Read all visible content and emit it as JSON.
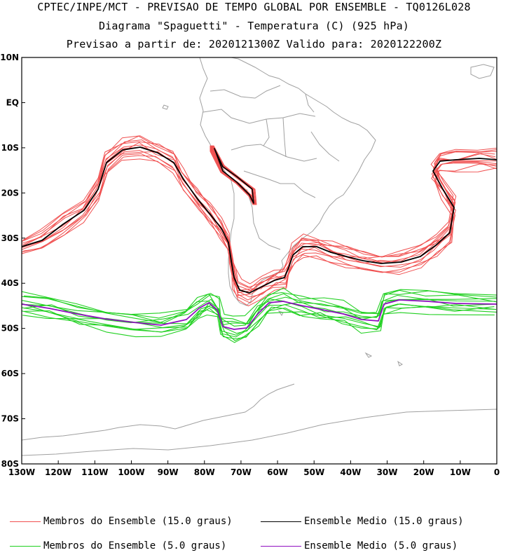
{
  "header": {
    "line1": "CPTEC/INPE/MCT - PREVISAO DE TEMPO GLOBAL POR ENSEMBLE - TQ0126L028",
    "line2": "Diagrama \"Spaguetti\" - Temperatura (C) (925 hPa)",
    "line3": "Previsao a partir de: 2020121300Z  Valido para: 2020122200Z"
  },
  "axes": {
    "lat_labels": [
      "10N",
      "EQ",
      "10S",
      "20S",
      "30S",
      "40S",
      "50S",
      "60S",
      "70S",
      "80S"
    ],
    "lon_labels": [
      "130W",
      "120W",
      "110W",
      "100W",
      "90W",
      "80W",
      "70W",
      "60W",
      "50W",
      "40W",
      "30W",
      "20W",
      "10W",
      "0"
    ]
  },
  "colors": {
    "members_15": "#f05050",
    "mean_15": "#000000",
    "members_5": "#20d020",
    "mean_5": "#9010c0",
    "coast": "#a0a0a0"
  },
  "legend": {
    "members_15": "Membros do Ensemble (15.0 graus)",
    "mean_15": "Ensemble Medio (15.0 graus)",
    "members_5": "Membros do Ensemble (5.0 graus)",
    "mean_5": "Ensemble Medio (5.0 graus)"
  }
}
